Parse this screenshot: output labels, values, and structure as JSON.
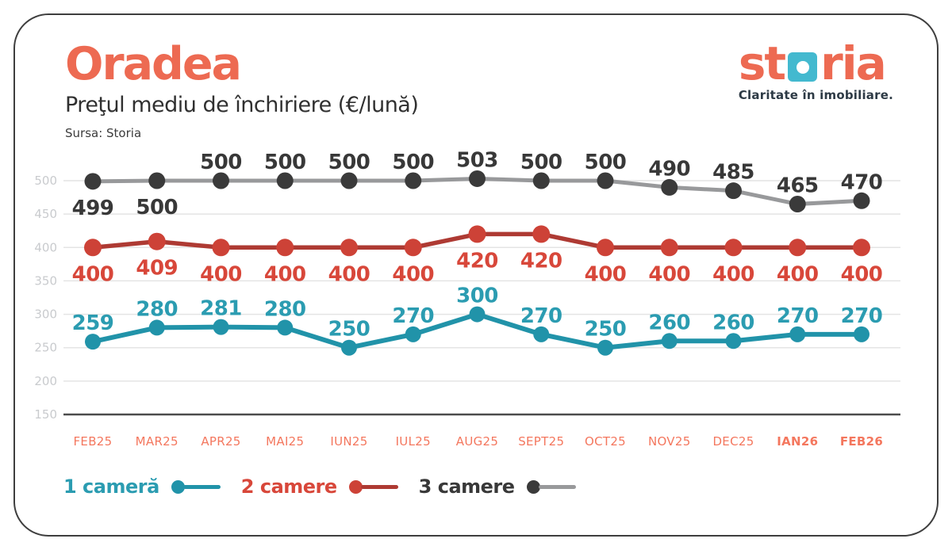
{
  "header": {
    "title": "Oradea",
    "subtitle": "Preţul mediu de închiriere (€/lună)",
    "source": "Sursa: Storia"
  },
  "logo": {
    "part1": "st",
    "part2": "ria",
    "tagline": "Claritate în imobiliare.",
    "coral": "#ed6a52",
    "square_color": "#43b9cf"
  },
  "chart_data": {
    "type": "line",
    "title": "Preţul mediu de închiriere (€/lună)",
    "source": "Sursa: Storia",
    "categories": [
      "FEB25",
      "MAR25",
      "APR25",
      "MAI25",
      "IUN25",
      "IUL25",
      "AUG25",
      "SEPT25",
      "OCT25",
      "NOV25",
      "DEC25",
      "IAN26",
      "FEB26"
    ],
    "bold_categories": [
      "IAN26",
      "FEB26"
    ],
    "series": [
      {
        "name": "1 cameră",
        "values": [
          259,
          280,
          281,
          280,
          250,
          270,
          300,
          270,
          250,
          260,
          260,
          270,
          270
        ],
        "line_color": "#2193a9",
        "dot_color": "#2193a9",
        "label_color": "#2b9cb1",
        "label_position": "above"
      },
      {
        "name": "2 camere",
        "values": [
          400,
          409,
          400,
          400,
          400,
          400,
          420,
          420,
          400,
          400,
          400,
          400,
          400
        ],
        "line_color": "#ae3a33",
        "dot_color": "#cd4237",
        "label_color": "#d8473a",
        "label_position": "below"
      },
      {
        "name": "3 camere",
        "values": [
          499,
          500,
          500,
          500,
          500,
          500,
          503,
          500,
          500,
          490,
          485,
          465,
          470
        ],
        "line_color": "#98999b",
        "dot_color": "#3a3a3a",
        "label_color": "#383838",
        "label_position": "above",
        "label_below_indices": [
          0,
          1
        ]
      }
    ],
    "yticks": [
      150,
      200,
      250,
      300,
      350,
      400,
      450,
      500
    ],
    "ylim": [
      150,
      540
    ],
    "grid": true,
    "legend_position": "bottom",
    "axis_colors": {
      "x_labels": "#f4775e",
      "y_labels": "#c9cbce",
      "grid": "#e4e4e4",
      "baseline": "#4c4c4c"
    }
  }
}
